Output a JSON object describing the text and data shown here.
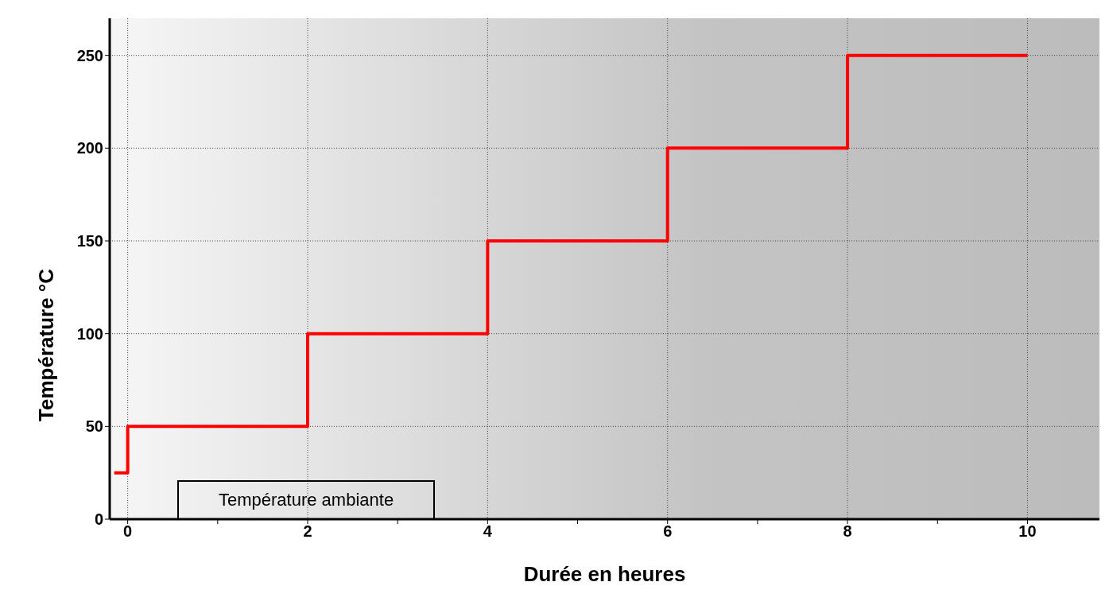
{
  "chart_data": {
    "type": "step",
    "xlabel": "Durée en heures",
    "ylabel": "Température °C",
    "x": [
      -0.15,
      0,
      2,
      4,
      6,
      8,
      10
    ],
    "series": [
      {
        "color": "#ff0000",
        "values": [
          25,
          50,
          100,
          150,
          200,
          250,
          250
        ]
      }
    ],
    "xlim": [
      -0.2,
      10.8
    ],
    "xticks": [
      0,
      {
        "value": 1,
        "label": null
      },
      2,
      {
        "value": 3,
        "label": null
      },
      4,
      {
        "value": 5,
        "label": null
      },
      6,
      {
        "value": 7,
        "label": null
      },
      8,
      {
        "value": 9,
        "label": null
      },
      10
    ],
    "ylim": [
      0,
      270
    ],
    "yticks": [
      0,
      50,
      100,
      150,
      200,
      250
    ],
    "grid": true,
    "line_style": "solid",
    "marker": "none",
    "annotations": [
      "Température ambiante"
    ]
  }
}
